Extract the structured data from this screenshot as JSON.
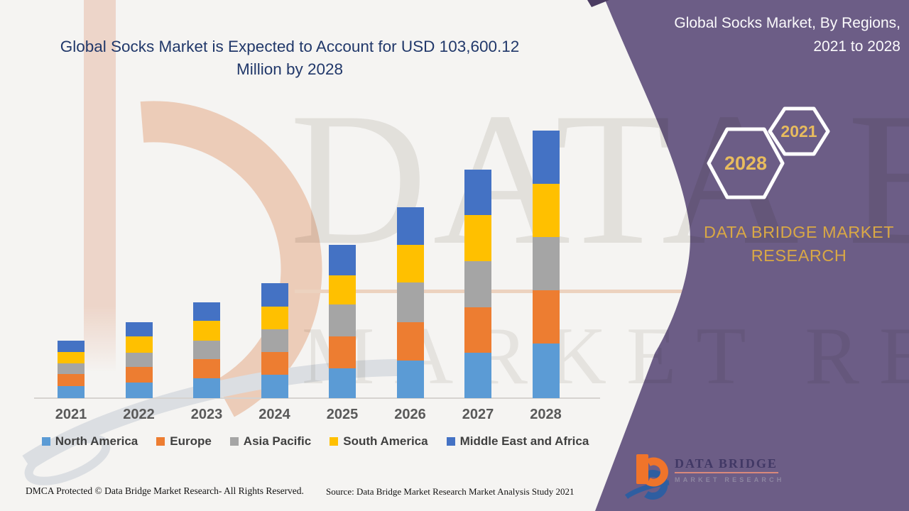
{
  "page": {
    "background": "#F5F4F2"
  },
  "header": {
    "title_line1": "Global Socks Market is Expected to Account for USD 103,600.12",
    "title_line2": "Million by 2028"
  },
  "panel": {
    "color": "#6C5D86",
    "fold_color": "#4B3C62",
    "gold": "#D9A845",
    "title_line1": "Global Socks Market, By Regions,",
    "title_line2": "2021 to 2028",
    "hexagon_front_label": "2028",
    "hexagon_back_label": "2021",
    "brand_line1": "DATA BRIDGE MARKET",
    "brand_line2": "RESEARCH"
  },
  "chart_data": {
    "type": "bar",
    "stacked": true,
    "title": "Global Socks Market is Expected to Account for USD 103,600.12 Million by 2028",
    "categories": [
      "2021",
      "2022",
      "2023",
      "2024",
      "2025",
      "2026",
      "2027",
      "2028"
    ],
    "series": [
      {
        "name": "North America",
        "color": "#5B9BD5",
        "values": [
          4590,
          5970,
          7620,
          8990,
          11550,
          14660,
          17680,
          21090.12
        ]
      },
      {
        "name": "Europe",
        "color": "#ED7D31",
        "values": [
          4760,
          6130,
          7510,
          8880,
          12380,
          14850,
          17600,
          20630
        ]
      },
      {
        "name": "Asia Pacific",
        "color": "#A5A5A5",
        "values": [
          4130,
          5500,
          7150,
          8880,
          12380,
          15400,
          17880,
          20630
        ]
      },
      {
        "name": "South America",
        "color": "#FFC000",
        "values": [
          4320,
          6410,
          7780,
          8800,
          11280,
          14490,
          17710,
          20790
        ]
      },
      {
        "name": "Middle East and Africa",
        "color": "#4472C4",
        "values": [
          4400,
          5500,
          7070,
          8990,
          11830,
          14580,
          17770,
          20460
        ]
      }
    ],
    "totals": [
      22200,
      29510,
      37130,
      44540,
      59420,
      73980,
      88640,
      103600.12
    ],
    "units": "USD Million (values estimated from bar heights; only the 2028 total of 103,600.12 is labeled)",
    "xlabel": "",
    "ylabel": "",
    "ylim": [
      0,
      110000
    ],
    "grid": false,
    "y_axis_shown": false,
    "legend_position": "bottom"
  },
  "watermark": {
    "row1": "DATA BRI",
    "row2": "MARKET RESEARCH"
  },
  "logo": {
    "name": "DATA BRIDGE",
    "tagline": "MARKET RESEARCH"
  },
  "footer": {
    "dmca": "DMCA Protected © Data Bridge Market Research- All Rights Reserved.",
    "source": "Source: Data Bridge Market Research Market Analysis Study 2021"
  }
}
